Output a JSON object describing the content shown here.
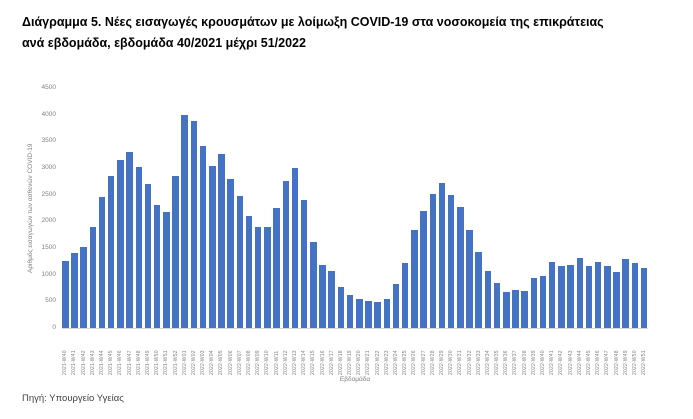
{
  "header": {
    "title_line1": "Διάγραμμα 5. Νέες εισαγωγές κρουσμάτων με λοίμωξη COVID-19 στα νοσοκομεία της επικράτειας",
    "title_line2": "ανά εβδομάδα, εβδομάδα 40/2021 μέχρι 51/2022"
  },
  "footer": {
    "source": "Πηγή: Υπουργείο Υγείας"
  },
  "chart_data": {
    "type": "bar",
    "title": "Διάγραμμα 5. Νέες εισαγωγές κρουσμάτων με λοίμωξη COVID-19 στα νοσοκομεία της επικράτειας ανά εβδομάδα, εβδομάδα 40/2021 μέχρι 51/2022",
    "xlabel": "Εβδομάδα",
    "ylabel": "Αριθμός εισαγωγών των ασθενών COVID-19",
    "ylim": [
      0,
      4500
    ],
    "yticks": [
      0,
      500,
      1000,
      1500,
      2000,
      2500,
      3000,
      3500,
      4000,
      4500
    ],
    "grid": false,
    "legend": false,
    "bar_color": "#4472C4",
    "categories": [
      "2021-W40",
      "2021-W41",
      "2021-W42",
      "2021-W43",
      "2021-W44",
      "2021-W45",
      "2021-W46",
      "2021-W47",
      "2021-W48",
      "2021-W49",
      "2021-W50",
      "2021-W51",
      "2021-W52",
      "2022-W01",
      "2022-W02",
      "2022-W03",
      "2022-W04",
      "2022-W05",
      "2022-W06",
      "2022-W07",
      "2022-W08",
      "2022-W09",
      "2022-W10",
      "2022-W11",
      "2022-W12",
      "2022-W13",
      "2022-W14",
      "2022-W15",
      "2022-W16",
      "2022-W17",
      "2022-W18",
      "2022-W19",
      "2022-W20",
      "2022-W21",
      "2022-W22",
      "2022-W23",
      "2022-W24",
      "2022-W25",
      "2022-W26",
      "2022-W27",
      "2022-W28",
      "2022-W29",
      "2022-W30",
      "2022-W31",
      "2022-W32",
      "2022-W33",
      "2022-W34",
      "2022-W35",
      "2022-W36",
      "2022-W37",
      "2022-W38",
      "2022-W39",
      "2022-W40",
      "2022-W41",
      "2022-W42",
      "2022-W43",
      "2022-W44",
      "2022-W45",
      "2022-W46",
      "2022-W47",
      "2022-W48",
      "2022-W49",
      "2022-W50",
      "2022-W51"
    ],
    "values": [
      1250,
      1400,
      1520,
      1900,
      2450,
      2850,
      3150,
      3300,
      3020,
      2700,
      2300,
      2170,
      2860,
      4000,
      3890,
      3420,
      3030,
      3270,
      2800,
      2480,
      2100,
      1900,
      1900,
      2250,
      2750,
      3010,
      2400,
      1610,
      1180,
      1070,
      770,
      620,
      540,
      510,
      480,
      540,
      820,
      1220,
      1840,
      2200,
      2520,
      2720,
      2500,
      2270,
      1840,
      1430,
      1070,
      840,
      680,
      710,
      700,
      940,
      970,
      1240,
      1160,
      1190,
      1320,
      1160,
      1240,
      1160,
      1050,
      1300,
      1220,
      1130
    ]
  }
}
